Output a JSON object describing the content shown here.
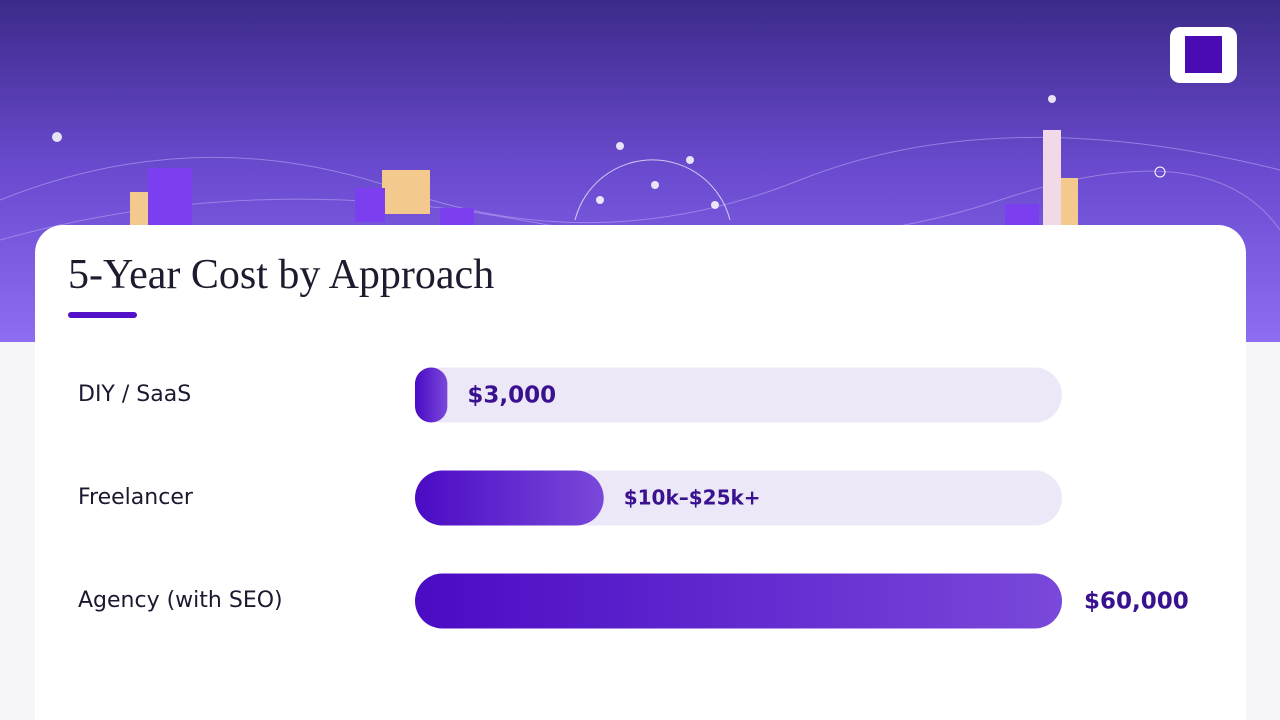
{
  "chart_data": {
    "type": "bar",
    "orientation": "horizontal",
    "title": "5-Year Cost by Approach",
    "categories": [
      "DIY / SaaS",
      "Freelancer",
      "Agency (with SEO)"
    ],
    "values": [
      3000,
      17500,
      60000
    ],
    "value_labels": [
      "$3,000",
      "$10k–$25k+",
      "$60,000"
    ],
    "color": "#5a17cc"
  }
}
